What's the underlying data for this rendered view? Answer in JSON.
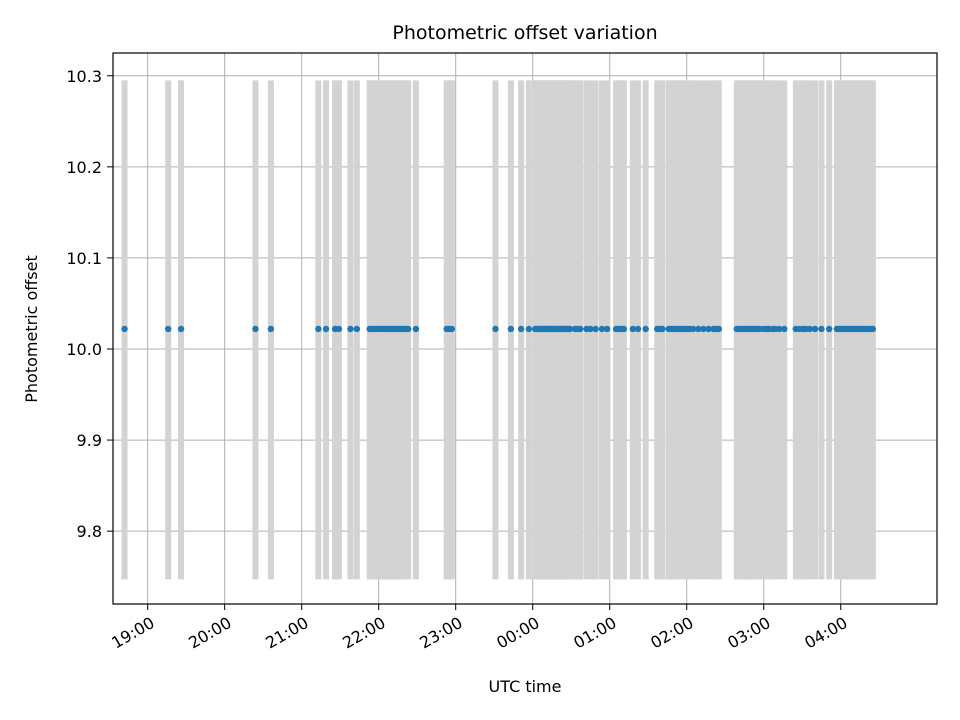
{
  "chart_data": {
    "type": "scatter",
    "title": "Photometric offset variation",
    "xlabel": "UTC time",
    "ylabel": "Photometric offset",
    "x_axis_type": "time",
    "xlim": [
      "18:33",
      "05:15"
    ],
    "ylim": [
      9.72,
      10.325
    ],
    "grid": true,
    "legend": "none",
    "x_ticks": [
      "19:00",
      "20:00",
      "21:00",
      "22:00",
      "23:00",
      "00:00",
      "01:00",
      "02:00",
      "03:00",
      "04:00"
    ],
    "y_ticks": [
      9.8,
      9.9,
      10.0,
      10.1,
      10.2,
      10.3
    ],
    "y_tick_labels": [
      "9.8",
      "9.9",
      "10.0",
      "10.1",
      "10.2",
      "10.3"
    ],
    "series": [
      {
        "color": "#1f77b4",
        "marker": "dot",
        "error_bar_color": "#d3d3d3",
        "value": 10.022,
        "error_range": [
          9.747,
          10.295
        ],
        "x": [
          "18:42",
          "19:16",
          "19:26",
          "20:24",
          "20:36",
          "21:13",
          "21:19",
          "21:26",
          "21:29",
          "21:38",
          "21:43",
          "21:53",
          "21:55",
          "21:57",
          "21:59",
          "22:01",
          "22:03",
          "22:05",
          "22:07",
          "22:09",
          "22:11",
          "22:13",
          "22:15",
          "22:17",
          "22:19",
          "22:21",
          "22:23",
          "22:29",
          "22:53",
          "22:55",
          "22:57",
          "23:31",
          "23:43",
          "23:51",
          "23:57",
          "00:02",
          "00:03",
          "00:04",
          "00:05",
          "00:06",
          "00:07",
          "00:08",
          "00:09",
          "00:10",
          "00:11",
          "00:12",
          "00:13",
          "00:14",
          "00:15",
          "00:16",
          "00:17",
          "00:18",
          "00:19",
          "00:20",
          "00:21",
          "00:22",
          "00:23",
          "00:24",
          "00:25",
          "00:26",
          "00:27",
          "00:28",
          "00:29",
          "00:33",
          "00:35",
          "00:37",
          "00:42",
          "00:45",
          "00:49",
          "00:54",
          "00:58",
          "01:05",
          "01:07",
          "01:09",
          "01:11",
          "01:18",
          "01:22",
          "01:28",
          "01:37",
          "01:39",
          "01:41",
          "01:46",
          "01:48",
          "01:50",
          "01:52",
          "01:54",
          "01:56",
          "01:58",
          "02:00",
          "02:02",
          "02:05",
          "02:09",
          "02:13",
          "02:17",
          "02:21",
          "02:23",
          "02:25",
          "02:39",
          "02:41",
          "02:43",
          "02:45",
          "02:47",
          "02:49",
          "02:51",
          "02:53",
          "02:55",
          "02:57",
          "03:00",
          "03:02",
          "03:04",
          "03:07",
          "03:09",
          "03:12",
          "03:16",
          "03:25",
          "03:28",
          "03:31",
          "03:33",
          "03:36",
          "03:40",
          "03:45",
          "03:51",
          "03:57",
          "03:59",
          "04:01",
          "04:03",
          "04:05",
          "04:07",
          "04:09",
          "04:11",
          "04:13",
          "04:15",
          "04:17",
          "04:19",
          "04:21",
          "04:23",
          "04:25"
        ]
      }
    ]
  }
}
